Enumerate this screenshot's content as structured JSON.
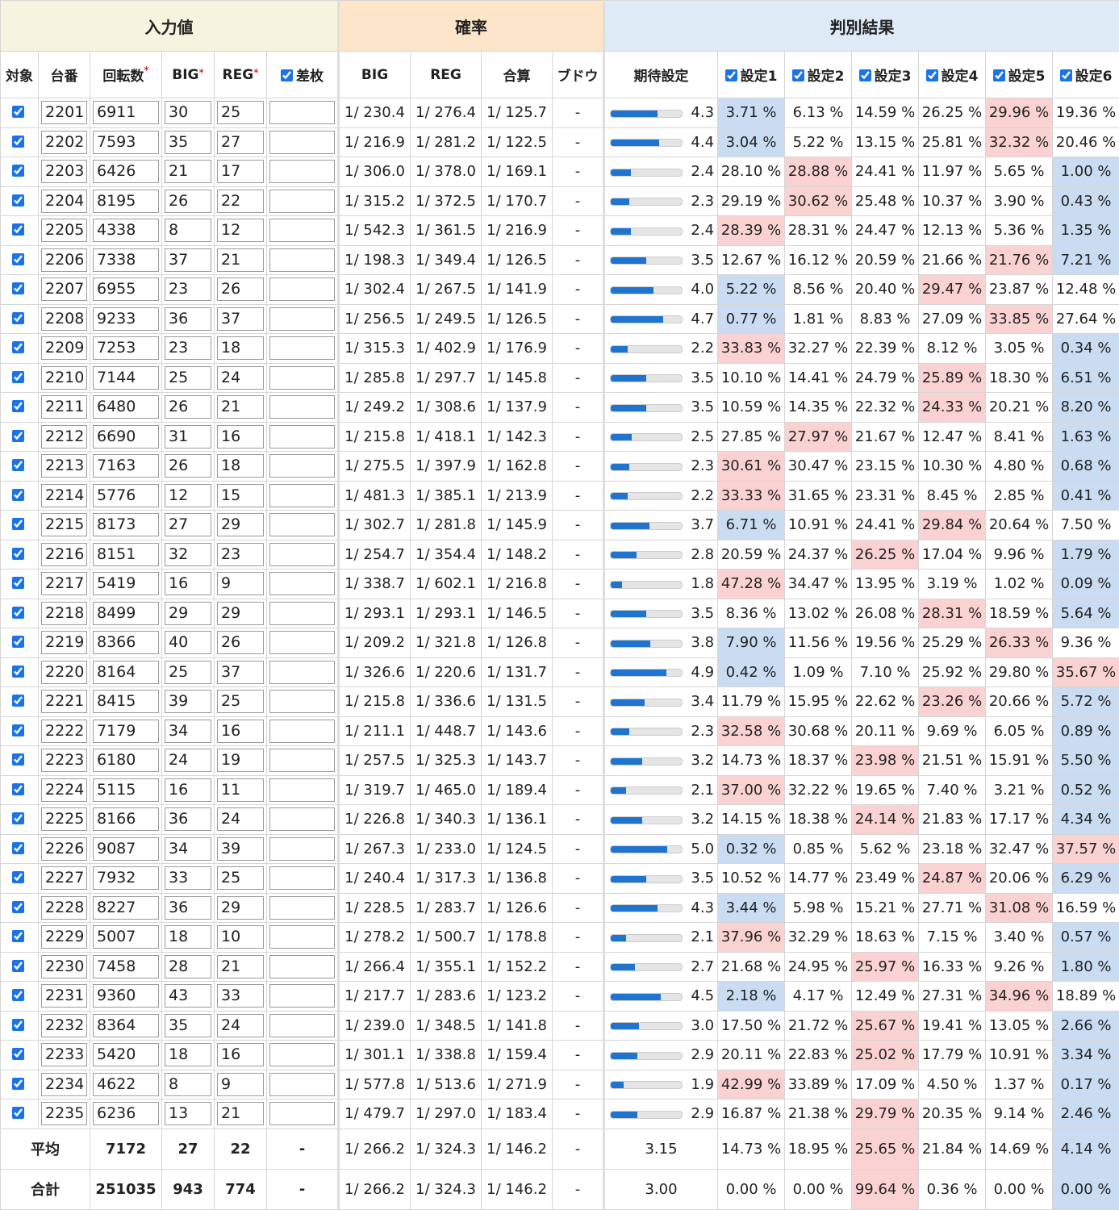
{
  "groups": [
    {
      "label": "入力値",
      "span": 6,
      "color": "#f6f4de"
    },
    {
      "label": "確率",
      "span": 4,
      "color": "#fde5c9"
    },
    {
      "label": "判別結果",
      "span": 7,
      "color": "#deeaf6"
    }
  ],
  "columns": [
    {
      "label": "対象"
    },
    {
      "label": "台番"
    },
    {
      "label": "回転数",
      "required": "*"
    },
    {
      "label": "BIG",
      "required": "*"
    },
    {
      "label": "REG",
      "required": "*"
    },
    {
      "label": "差枚",
      "checkbox": true
    },
    {
      "label": "BIG"
    },
    {
      "label": "REG"
    },
    {
      "label": "合算"
    },
    {
      "label": "ブドウ"
    },
    {
      "label": "期待設定"
    },
    {
      "label": "設定1",
      "checkbox": true
    },
    {
      "label": "設定2",
      "checkbox": true
    },
    {
      "label": "設定3",
      "checkbox": true
    },
    {
      "label": "設定4",
      "checkbox": true
    },
    {
      "label": "設定5",
      "checkbox": true
    },
    {
      "label": "設定6",
      "checkbox": true
    }
  ],
  "all_checked": true,
  "expected_scale": [
    1,
    6
  ],
  "bar_color": "#1f74cf",
  "max_color": "#fbd2d2",
  "min_color": "#c9dcf1",
  "rows": [
    [
      "2201",
      "6911",
      "30",
      "25",
      "1/ 230.4",
      "1/ 276.4",
      "1/ 125.7",
      "-",
      "4.3",
      "3.71 %",
      "6.13 %",
      "14.59 %",
      "26.25 %",
      "29.96 %",
      "19.36 %"
    ],
    [
      "2202",
      "7593",
      "35",
      "27",
      "1/ 216.9",
      "1/ 281.2",
      "1/ 122.5",
      "-",
      "4.4",
      "3.04 %",
      "5.22 %",
      "13.15 %",
      "25.81 %",
      "32.32 %",
      "20.46 %"
    ],
    [
      "2203",
      "6426",
      "21",
      "17",
      "1/ 306.0",
      "1/ 378.0",
      "1/ 169.1",
      "-",
      "2.4",
      "28.10 %",
      "28.88 %",
      "24.41 %",
      "11.97 %",
      "5.65 %",
      "1.00 %"
    ],
    [
      "2204",
      "8195",
      "26",
      "22",
      "1/ 315.2",
      "1/ 372.5",
      "1/ 170.7",
      "-",
      "2.3",
      "29.19 %",
      "30.62 %",
      "25.48 %",
      "10.37 %",
      "3.90 %",
      "0.43 %"
    ],
    [
      "2205",
      "4338",
      "8",
      "12",
      "1/ 542.3",
      "1/ 361.5",
      "1/ 216.9",
      "-",
      "2.4",
      "28.39 %",
      "28.31 %",
      "24.47 %",
      "12.13 %",
      "5.36 %",
      "1.35 %"
    ],
    [
      "2206",
      "7338",
      "37",
      "21",
      "1/ 198.3",
      "1/ 349.4",
      "1/ 126.5",
      "-",
      "3.5",
      "12.67 %",
      "16.12 %",
      "20.59 %",
      "21.66 %",
      "21.76 %",
      "7.21 %"
    ],
    [
      "2207",
      "6955",
      "23",
      "26",
      "1/ 302.4",
      "1/ 267.5",
      "1/ 141.9",
      "-",
      "4.0",
      "5.22 %",
      "8.56 %",
      "20.40 %",
      "29.47 %",
      "23.87 %",
      "12.48 %"
    ],
    [
      "2208",
      "9233",
      "36",
      "37",
      "1/ 256.5",
      "1/ 249.5",
      "1/ 126.5",
      "-",
      "4.7",
      "0.77 %",
      "1.81 %",
      "8.83 %",
      "27.09 %",
      "33.85 %",
      "27.64 %"
    ],
    [
      "2209",
      "7253",
      "23",
      "18",
      "1/ 315.3",
      "1/ 402.9",
      "1/ 176.9",
      "-",
      "2.2",
      "33.83 %",
      "32.27 %",
      "22.39 %",
      "8.12 %",
      "3.05 %",
      "0.34 %"
    ],
    [
      "2210",
      "7144",
      "25",
      "24",
      "1/ 285.8",
      "1/ 297.7",
      "1/ 145.8",
      "-",
      "3.5",
      "10.10 %",
      "14.41 %",
      "24.79 %",
      "25.89 %",
      "18.30 %",
      "6.51 %"
    ],
    [
      "2211",
      "6480",
      "26",
      "21",
      "1/ 249.2",
      "1/ 308.6",
      "1/ 137.9",
      "-",
      "3.5",
      "10.59 %",
      "14.35 %",
      "22.32 %",
      "24.33 %",
      "20.21 %",
      "8.20 %"
    ],
    [
      "2212",
      "6690",
      "31",
      "16",
      "1/ 215.8",
      "1/ 418.1",
      "1/ 142.3",
      "-",
      "2.5",
      "27.85 %",
      "27.97 %",
      "21.67 %",
      "12.47 %",
      "8.41 %",
      "1.63 %"
    ],
    [
      "2213",
      "7163",
      "26",
      "18",
      "1/ 275.5",
      "1/ 397.9",
      "1/ 162.8",
      "-",
      "2.3",
      "30.61 %",
      "30.47 %",
      "23.15 %",
      "10.30 %",
      "4.80 %",
      "0.68 %"
    ],
    [
      "2214",
      "5776",
      "12",
      "15",
      "1/ 481.3",
      "1/ 385.1",
      "1/ 213.9",
      "-",
      "2.2",
      "33.33 %",
      "31.65 %",
      "23.31 %",
      "8.45 %",
      "2.85 %",
      "0.41 %"
    ],
    [
      "2215",
      "8173",
      "27",
      "29",
      "1/ 302.7",
      "1/ 281.8",
      "1/ 145.9",
      "-",
      "3.7",
      "6.71 %",
      "10.91 %",
      "24.41 %",
      "29.84 %",
      "20.64 %",
      "7.50 %"
    ],
    [
      "2216",
      "8151",
      "32",
      "23",
      "1/ 254.7",
      "1/ 354.4",
      "1/ 148.2",
      "-",
      "2.8",
      "20.59 %",
      "24.37 %",
      "26.25 %",
      "17.04 %",
      "9.96 %",
      "1.79 %"
    ],
    [
      "2217",
      "5419",
      "16",
      "9",
      "1/ 338.7",
      "1/ 602.1",
      "1/ 216.8",
      "-",
      "1.8",
      "47.28 %",
      "34.47 %",
      "13.95 %",
      "3.19 %",
      "1.02 %",
      "0.09 %"
    ],
    [
      "2218",
      "8499",
      "29",
      "29",
      "1/ 293.1",
      "1/ 293.1",
      "1/ 146.5",
      "-",
      "3.5",
      "8.36 %",
      "13.02 %",
      "26.08 %",
      "28.31 %",
      "18.59 %",
      "5.64 %"
    ],
    [
      "2219",
      "8366",
      "40",
      "26",
      "1/ 209.2",
      "1/ 321.8",
      "1/ 126.8",
      "-",
      "3.8",
      "7.90 %",
      "11.56 %",
      "19.56 %",
      "25.29 %",
      "26.33 %",
      "9.36 %"
    ],
    [
      "2220",
      "8164",
      "25",
      "37",
      "1/ 326.6",
      "1/ 220.6",
      "1/ 131.7",
      "-",
      "4.9",
      "0.42 %",
      "1.09 %",
      "7.10 %",
      "25.92 %",
      "29.80 %",
      "35.67 %"
    ],
    [
      "2221",
      "8415",
      "39",
      "25",
      "1/ 215.8",
      "1/ 336.6",
      "1/ 131.5",
      "-",
      "3.4",
      "11.79 %",
      "15.95 %",
      "22.62 %",
      "23.26 %",
      "20.66 %",
      "5.72 %"
    ],
    [
      "2222",
      "7179",
      "34",
      "16",
      "1/ 211.1",
      "1/ 448.7",
      "1/ 143.6",
      "-",
      "2.3",
      "32.58 %",
      "30.68 %",
      "20.11 %",
      "9.69 %",
      "6.05 %",
      "0.89 %"
    ],
    [
      "2223",
      "6180",
      "24",
      "19",
      "1/ 257.5",
      "1/ 325.3",
      "1/ 143.7",
      "-",
      "3.2",
      "14.73 %",
      "18.37 %",
      "23.98 %",
      "21.51 %",
      "15.91 %",
      "5.50 %"
    ],
    [
      "2224",
      "5115",
      "16",
      "11",
      "1/ 319.7",
      "1/ 465.0",
      "1/ 189.4",
      "-",
      "2.1",
      "37.00 %",
      "32.22 %",
      "19.65 %",
      "7.40 %",
      "3.21 %",
      "0.52 %"
    ],
    [
      "2225",
      "8166",
      "36",
      "24",
      "1/ 226.8",
      "1/ 340.3",
      "1/ 136.1",
      "-",
      "3.2",
      "14.15 %",
      "18.38 %",
      "24.14 %",
      "21.83 %",
      "17.17 %",
      "4.34 %"
    ],
    [
      "2226",
      "9087",
      "34",
      "39",
      "1/ 267.3",
      "1/ 233.0",
      "1/ 124.5",
      "-",
      "5.0",
      "0.32 %",
      "0.85 %",
      "5.62 %",
      "23.18 %",
      "32.47 %",
      "37.57 %"
    ],
    [
      "2227",
      "7932",
      "33",
      "25",
      "1/ 240.4",
      "1/ 317.3",
      "1/ 136.8",
      "-",
      "3.5",
      "10.52 %",
      "14.77 %",
      "23.49 %",
      "24.87 %",
      "20.06 %",
      "6.29 %"
    ],
    [
      "2228",
      "8227",
      "36",
      "29",
      "1/ 228.5",
      "1/ 283.7",
      "1/ 126.6",
      "-",
      "4.3",
      "3.44 %",
      "5.98 %",
      "15.21 %",
      "27.71 %",
      "31.08 %",
      "16.59 %"
    ],
    [
      "2229",
      "5007",
      "18",
      "10",
      "1/ 278.2",
      "1/ 500.7",
      "1/ 178.8",
      "-",
      "2.1",
      "37.96 %",
      "32.29 %",
      "18.63 %",
      "7.15 %",
      "3.40 %",
      "0.57 %"
    ],
    [
      "2230",
      "7458",
      "28",
      "21",
      "1/ 266.4",
      "1/ 355.1",
      "1/ 152.2",
      "-",
      "2.7",
      "21.68 %",
      "24.95 %",
      "25.97 %",
      "16.33 %",
      "9.26 %",
      "1.80 %"
    ],
    [
      "2231",
      "9360",
      "43",
      "33",
      "1/ 217.7",
      "1/ 283.6",
      "1/ 123.2",
      "-",
      "4.5",
      "2.18 %",
      "4.17 %",
      "12.49 %",
      "27.31 %",
      "34.96 %",
      "18.89 %"
    ],
    [
      "2232",
      "8364",
      "35",
      "24",
      "1/ 239.0",
      "1/ 348.5",
      "1/ 141.8",
      "-",
      "3.0",
      "17.50 %",
      "21.72 %",
      "25.67 %",
      "19.41 %",
      "13.05 %",
      "2.66 %"
    ],
    [
      "2233",
      "5420",
      "18",
      "16",
      "1/ 301.1",
      "1/ 338.8",
      "1/ 159.4",
      "-",
      "2.9",
      "20.11 %",
      "22.83 %",
      "25.02 %",
      "17.79 %",
      "10.91 %",
      "3.34 %"
    ],
    [
      "2234",
      "4622",
      "8",
      "9",
      "1/ 577.8",
      "1/ 513.6",
      "1/ 271.9",
      "-",
      "1.9",
      "42.99 %",
      "33.89 %",
      "17.09 %",
      "4.50 %",
      "1.37 %",
      "0.17 %"
    ],
    [
      "2235",
      "6236",
      "13",
      "21",
      "1/ 479.7",
      "1/ 297.0",
      "1/ 183.4",
      "-",
      "2.9",
      "16.87 %",
      "21.38 %",
      "29.79 %",
      "20.35 %",
      "9.14 %",
      "2.46 %"
    ]
  ],
  "summary": [
    {
      "label": "平均",
      "cells": [
        "7172",
        "27",
        "22",
        "-",
        "1/ 266.2",
        "1/ 324.3",
        "1/ 146.2",
        "-",
        "3.15",
        "14.73 %",
        "18.95 %",
        "25.65 %",
        "21.84 %",
        "14.69 %",
        "4.14 %"
      ]
    },
    {
      "label": "合計",
      "cells": [
        "251035",
        "943",
        "774",
        "-",
        "1/ 266.2",
        "1/ 324.3",
        "1/ 146.2",
        "-",
        "3.00",
        "0.00 %",
        "0.00 %",
        "99.64 %",
        "0.36 %",
        "0.00 %",
        "0.00 %"
      ]
    }
  ]
}
